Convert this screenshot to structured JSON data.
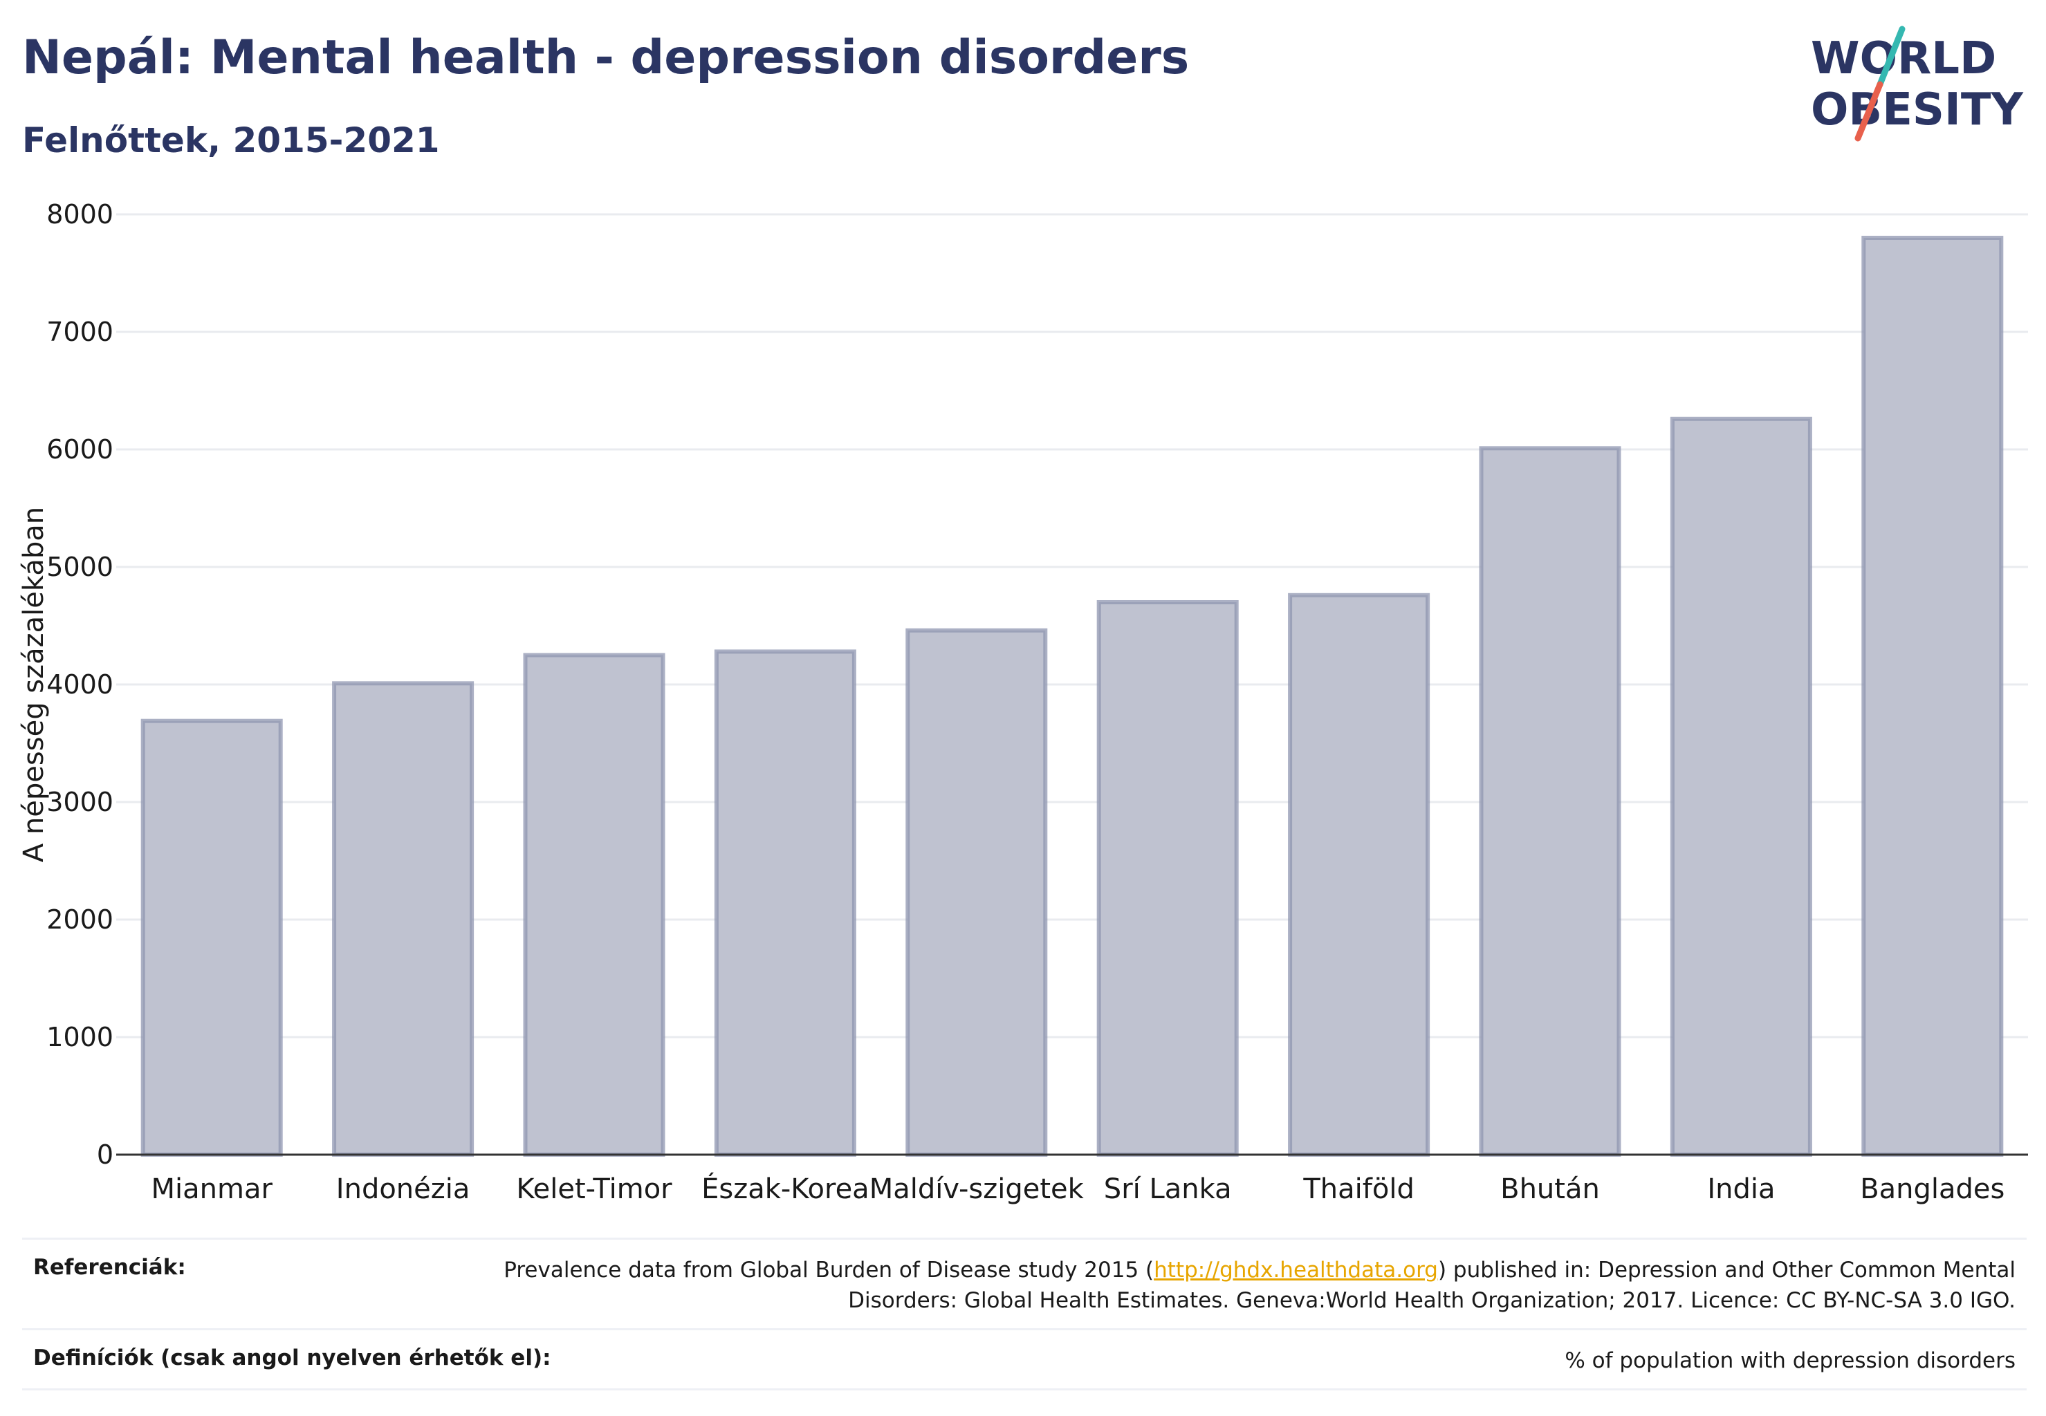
{
  "title": "Nepál: Mental health - depression disorders",
  "subtitle": "Felnőttek, 2015-2021",
  "logo": {
    "line1": "WORLD",
    "line2": "OBESITY",
    "accent_teal": "#35b8b1",
    "accent_red": "#e8604c",
    "text_color": "#2b3563"
  },
  "colors": {
    "bar_fill": "#bfc2d0",
    "bar_stroke": "#8f96b0",
    "grid": "#e9ebef",
    "axis": "#333333"
  },
  "chart_data": {
    "type": "bar",
    "title": "Nepál: Mental health - depression disorders",
    "subtitle": "Felnőttek, 2015-2021",
    "xlabel": "",
    "ylabel": "A népesség százalékában",
    "ylim": [
      0,
      8000
    ],
    "yticks": [
      0,
      1000,
      2000,
      3000,
      4000,
      5000,
      6000,
      7000,
      8000
    ],
    "grid": true,
    "categories": [
      "Mianmar",
      "Indonézia",
      "Kelet-Timor",
      "Észak-Korea",
      "Maldív-szigetek",
      "Srí Lanka",
      "Thaiföld",
      "Bhután",
      "India",
      "Banglades"
    ],
    "values": [
      3690,
      4010,
      4250,
      4280,
      4460,
      4700,
      4760,
      6010,
      6260,
      7800
    ]
  },
  "references": {
    "label": "Referenciák:",
    "text_before": "Prevalence data from Global Burden of Disease study 2015 (",
    "link": "http://ghdx.healthdata.org",
    "text_after": ") published in: Depression and Other Common Mental Disorders: Global Health Estimates. Geneva:World Health Organization; 2017. Licence: CC BY-NC-SA 3.0 IGO."
  },
  "definitions": {
    "label": "Definíciók (csak angol nyelven érhetők el):",
    "text": "% of population with depression disorders"
  }
}
